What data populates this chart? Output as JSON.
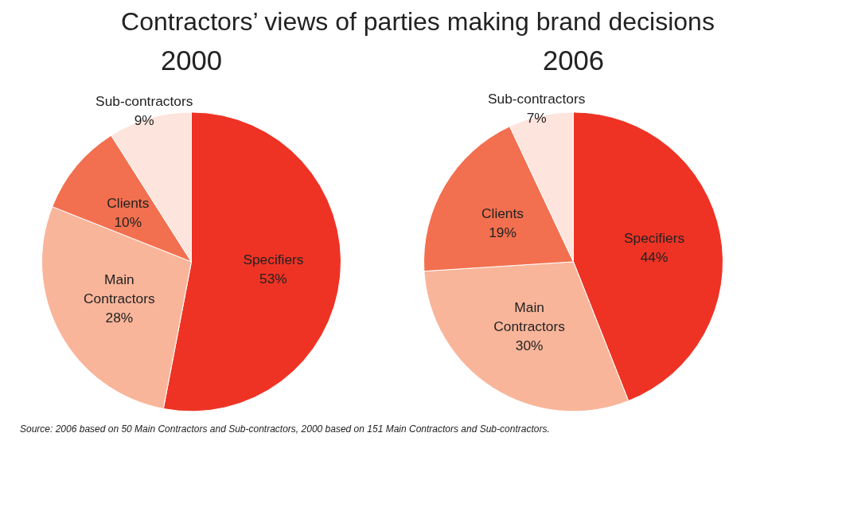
{
  "chart_data": [
    {
      "type": "pie",
      "title": "Contractors’ views of parties making brand decisions",
      "subtitle": "2000",
      "categories": [
        "Specifiers",
        "Main Contractors",
        "Clients",
        "Sub-contractors"
      ],
      "values": [
        53,
        28,
        10,
        9
      ],
      "value_labels": [
        "53%",
        "28%",
        "10%",
        "9%"
      ],
      "colors": [
        "#ee3325",
        "#f9b59a",
        "#f2704f",
        "#fde4dc"
      ]
    },
    {
      "type": "pie",
      "subtitle": "2006",
      "categories": [
        "Specifiers",
        "Main Contractors",
        "Clients",
        "Sub-contractors"
      ],
      "values": [
        44,
        30,
        19,
        7
      ],
      "value_labels": [
        "44%",
        "30%",
        "19%",
        "7%"
      ],
      "colors": [
        "#ee3325",
        "#f9b59a",
        "#f2704f",
        "#fde4dc"
      ],
      "annotations": [
        "Source: 2006 based on 50 Main Contractors and Sub-contractors, 2000 based on 151 Main Contractors and Sub-contractors."
      ]
    }
  ]
}
